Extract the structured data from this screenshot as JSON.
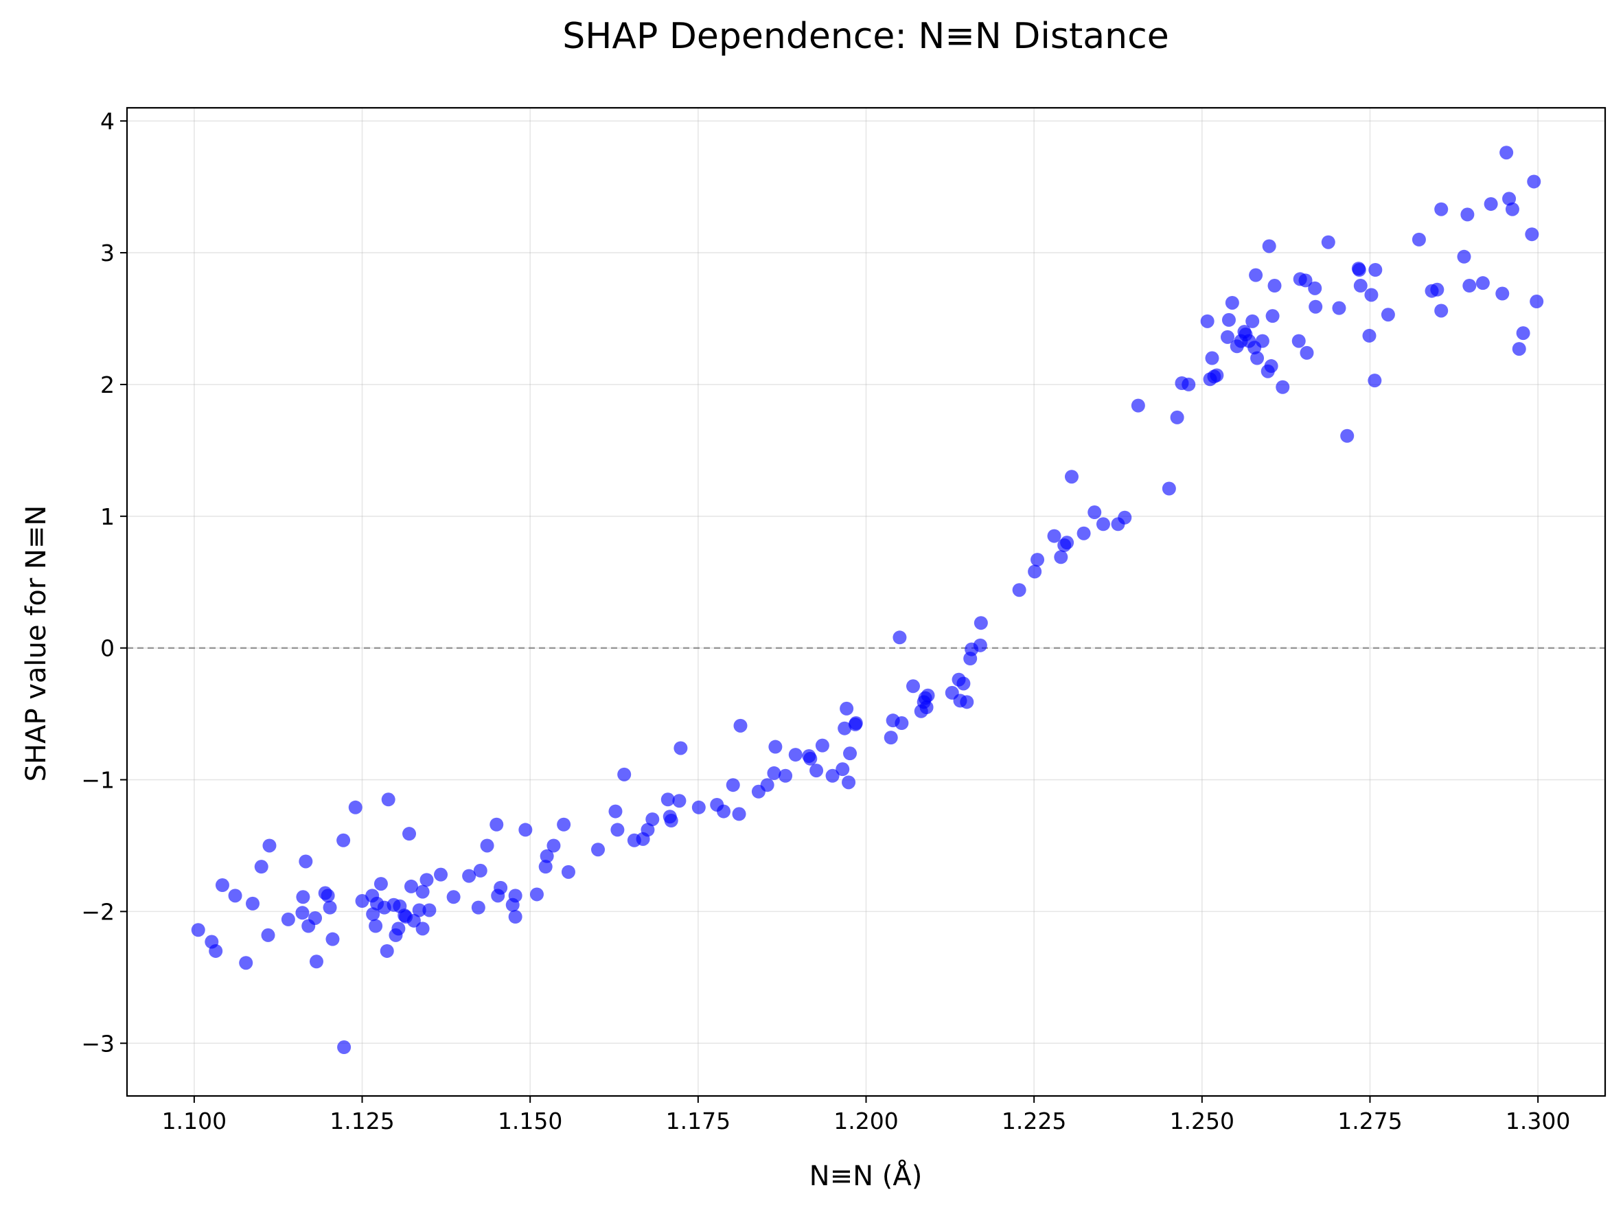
{
  "chart_data": {
    "type": "scatter",
    "title": "SHAP Dependence: N≡N Distance",
    "xlabel": "N≡N (Å)",
    "ylabel": "SHAP value for N≡N",
    "xlim": [
      1.09,
      1.31
    ],
    "ylim": [
      -3.4,
      4.1
    ],
    "xticks": [
      1.1,
      1.125,
      1.15,
      1.175,
      1.2,
      1.225,
      1.25,
      1.275,
      1.3
    ],
    "xtick_labels": [
      "1.100",
      "1.125",
      "1.150",
      "1.175",
      "1.200",
      "1.225",
      "1.250",
      "1.275",
      "1.300"
    ],
    "yticks": [
      -3,
      -2,
      -1,
      0,
      1,
      2,
      3,
      4
    ],
    "ytick_labels": [
      "−3",
      "−2",
      "−1",
      "0",
      "1",
      "2",
      "3",
      "4"
    ],
    "grid": true,
    "reference_line": {
      "y": 0,
      "style": "dashed",
      "color": "#808080"
    },
    "marker_color": "#0000ff",
    "series": [
      {
        "name": "N≡N",
        "points": [
          [
            1.1006,
            -2.14
          ],
          [
            1.1026,
            -2.23
          ],
          [
            1.1032,
            -2.3
          ],
          [
            1.1042,
            -1.8
          ],
          [
            1.1061,
            -1.88
          ],
          [
            1.1077,
            -2.39
          ],
          [
            1.1087,
            -1.94
          ],
          [
            1.11,
            -1.66
          ],
          [
            1.111,
            -2.18
          ],
          [
            1.1112,
            -1.5
          ],
          [
            1.114,
            -2.06
          ],
          [
            1.1161,
            -2.01
          ],
          [
            1.1162,
            -1.89
          ],
          [
            1.1166,
            -1.62
          ],
          [
            1.117,
            -2.11
          ],
          [
            1.118,
            -2.05
          ],
          [
            1.1182,
            -2.38
          ],
          [
            1.1195,
            -1.86
          ],
          [
            1.1199,
            -1.88
          ],
          [
            1.1202,
            -1.97
          ],
          [
            1.1206,
            -2.21
          ],
          [
            1.1223,
            -3.03
          ],
          [
            1.1222,
            -1.46
          ],
          [
            1.124,
            -1.21
          ],
          [
            1.125,
            -1.92
          ],
          [
            1.1265,
            -1.88
          ],
          [
            1.1266,
            -2.02
          ],
          [
            1.127,
            -2.11
          ],
          [
            1.1272,
            -1.94
          ],
          [
            1.1278,
            -1.79
          ],
          [
            1.1283,
            -1.97
          ],
          [
            1.1287,
            -2.3
          ],
          [
            1.1289,
            -1.15
          ],
          [
            1.1297,
            -1.95
          ],
          [
            1.13,
            -2.18
          ],
          [
            1.1304,
            -2.13
          ],
          [
            1.1306,
            -1.96
          ],
          [
            1.1313,
            -2.03
          ],
          [
            1.1315,
            -2.04
          ],
          [
            1.132,
            -1.41
          ],
          [
            1.1323,
            -1.81
          ],
          [
            1.1327,
            -2.07
          ],
          [
            1.1335,
            -1.99
          ],
          [
            1.134,
            -2.13
          ],
          [
            1.134,
            -1.85
          ],
          [
            1.1346,
            -1.76
          ],
          [
            1.135,
            -1.99
          ],
          [
            1.1367,
            -1.72
          ],
          [
            1.1386,
            -1.89
          ],
          [
            1.1409,
            -1.73
          ],
          [
            1.1423,
            -1.97
          ],
          [
            1.1426,
            -1.69
          ],
          [
            1.1436,
            -1.5
          ],
          [
            1.145,
            -1.34
          ],
          [
            1.1452,
            -1.88
          ],
          [
            1.1456,
            -1.82
          ],
          [
            1.1474,
            -1.95
          ],
          [
            1.1478,
            -1.88
          ],
          [
            1.1478,
            -2.04
          ],
          [
            1.1493,
            -1.38
          ],
          [
            1.151,
            -1.87
          ],
          [
            1.1523,
            -1.66
          ],
          [
            1.1525,
            -1.58
          ],
          [
            1.1535,
            -1.5
          ],
          [
            1.155,
            -1.34
          ],
          [
            1.1557,
            -1.7
          ],
          [
            1.1601,
            -1.53
          ],
          [
            1.1627,
            -1.24
          ],
          [
            1.163,
            -1.38
          ],
          [
            1.164,
            -0.96
          ],
          [
            1.1655,
            -1.46
          ],
          [
            1.1668,
            -1.45
          ],
          [
            1.1675,
            -1.38
          ],
          [
            1.1682,
            -1.3
          ],
          [
            1.1705,
            -1.15
          ],
          [
            1.1708,
            -1.28
          ],
          [
            1.171,
            -1.31
          ],
          [
            1.1722,
            -1.16
          ],
          [
            1.1724,
            -0.76
          ],
          [
            1.1751,
            -1.21
          ],
          [
            1.1778,
            -1.19
          ],
          [
            1.1788,
            -1.24
          ],
          [
            1.1802,
            -1.04
          ],
          [
            1.1811,
            -1.26
          ],
          [
            1.1813,
            -0.59
          ],
          [
            1.184,
            -1.09
          ],
          [
            1.1853,
            -1.04
          ],
          [
            1.1863,
            -0.95
          ],
          [
            1.1865,
            -0.75
          ],
          [
            1.188,
            -0.97
          ],
          [
            1.1895,
            -0.81
          ],
          [
            1.1915,
            -0.82
          ],
          [
            1.1917,
            -0.84
          ],
          [
            1.1926,
            -0.93
          ],
          [
            1.1935,
            -0.74
          ],
          [
            1.195,
            -0.97
          ],
          [
            1.1965,
            -0.92
          ],
          [
            1.1968,
            -0.61
          ],
          [
            1.1971,
            -0.46
          ],
          [
            1.1974,
            -1.02
          ],
          [
            1.1976,
            -0.8
          ],
          [
            1.1984,
            -0.58
          ],
          [
            1.1985,
            -0.57
          ],
          [
            1.2037,
            -0.68
          ],
          [
            1.204,
            -0.55
          ],
          [
            1.205,
            0.08
          ],
          [
            1.2053,
            -0.57
          ],
          [
            1.207,
            -0.29
          ],
          [
            1.2082,
            -0.48
          ],
          [
            1.2086,
            -0.41
          ],
          [
            1.2088,
            -0.38
          ],
          [
            1.209,
            -0.45
          ],
          [
            1.2092,
            -0.36
          ],
          [
            1.2128,
            -0.34
          ],
          [
            1.2138,
            -0.24
          ],
          [
            1.214,
            -0.4
          ],
          [
            1.2145,
            -0.27
          ],
          [
            1.215,
            -0.41
          ],
          [
            1.2155,
            -0.08
          ],
          [
            1.2157,
            -0.01
          ],
          [
            1.217,
            0.02
          ],
          [
            1.2171,
            0.19
          ],
          [
            1.2228,
            0.44
          ],
          [
            1.2251,
            0.58
          ],
          [
            1.2255,
            0.67
          ],
          [
            1.228,
            0.85
          ],
          [
            1.229,
            0.69
          ],
          [
            1.2295,
            0.78
          ],
          [
            1.2299,
            0.8
          ],
          [
            1.2306,
            1.3
          ],
          [
            1.2324,
            0.87
          ],
          [
            1.234,
            1.03
          ],
          [
            1.2353,
            0.94
          ],
          [
            1.2375,
            0.94
          ],
          [
            1.2385,
            0.99
          ],
          [
            1.2405,
            1.84
          ],
          [
            1.2451,
            1.21
          ],
          [
            1.2463,
            1.75
          ],
          [
            1.247,
            2.01
          ],
          [
            1.248,
            2.0
          ],
          [
            1.2508,
            2.48
          ],
          [
            1.2512,
            2.04
          ],
          [
            1.2515,
            2.2
          ],
          [
            1.2518,
            2.06
          ],
          [
            1.2522,
            2.07
          ],
          [
            1.2538,
            2.36
          ],
          [
            1.254,
            2.49
          ],
          [
            1.2545,
            2.62
          ],
          [
            1.2552,
            2.29
          ],
          [
            1.2558,
            2.33
          ],
          [
            1.2563,
            2.4
          ],
          [
            1.2565,
            2.38
          ],
          [
            1.257,
            2.33
          ],
          [
            1.2575,
            2.48
          ],
          [
            1.2578,
            2.28
          ],
          [
            1.258,
            2.83
          ],
          [
            1.2582,
            2.2
          ],
          [
            1.259,
            2.33
          ],
          [
            1.2598,
            2.1
          ],
          [
            1.26,
            3.05
          ],
          [
            1.2603,
            2.14
          ],
          [
            1.2605,
            2.52
          ],
          [
            1.2608,
            2.75
          ],
          [
            1.262,
            1.98
          ],
          [
            1.2644,
            2.33
          ],
          [
            1.2646,
            2.8
          ],
          [
            1.2654,
            2.79
          ],
          [
            1.2656,
            2.24
          ],
          [
            1.2668,
            2.73
          ],
          [
            1.2669,
            2.59
          ],
          [
            1.2688,
            3.08
          ],
          [
            1.2704,
            2.58
          ],
          [
            1.2716,
            1.61
          ],
          [
            1.2733,
            2.88
          ],
          [
            1.2734,
            2.87
          ],
          [
            1.2736,
            2.75
          ],
          [
            1.2749,
            2.37
          ],
          [
            1.2752,
            2.68
          ],
          [
            1.2757,
            2.03
          ],
          [
            1.2758,
            2.87
          ],
          [
            1.2777,
            2.53
          ],
          [
            1.2823,
            3.1
          ],
          [
            1.2842,
            2.71
          ],
          [
            1.285,
            2.72
          ],
          [
            1.2856,
            2.56
          ],
          [
            1.2856,
            3.33
          ],
          [
            1.289,
            2.97
          ],
          [
            1.2895,
            3.29
          ],
          [
            1.2898,
            2.75
          ],
          [
            1.2918,
            2.77
          ],
          [
            1.293,
            3.37
          ],
          [
            1.2947,
            2.69
          ],
          [
            1.2953,
            3.76
          ],
          [
            1.2957,
            3.41
          ],
          [
            1.2962,
            3.33
          ],
          [
            1.2972,
            2.27
          ],
          [
            1.2978,
            2.39
          ],
          [
            1.2991,
            3.14
          ],
          [
            1.2994,
            3.54
          ],
          [
            1.2998,
            2.63
          ]
        ]
      }
    ]
  }
}
